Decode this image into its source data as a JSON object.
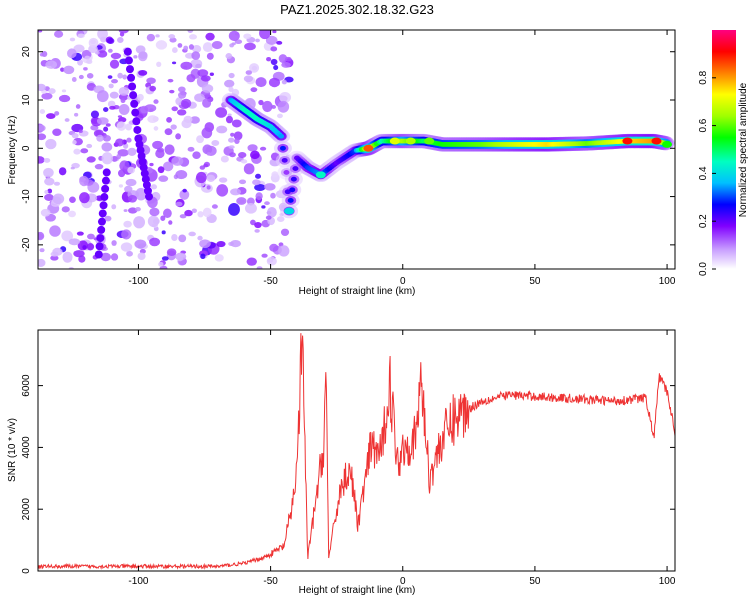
{
  "title": "PAZ1.2025.302.18.32.G23",
  "chart_data": [
    {
      "type": "heatmap",
      "name": "spectrogram",
      "xlabel": "Height of straight line (km)",
      "ylabel": "Frequency (Hz)",
      "xlim": [
        -138,
        103
      ],
      "ylim": [
        -25,
        24.5
      ],
      "xticks": [
        -100,
        -50,
        0,
        50,
        100
      ],
      "yticks": [
        -20,
        -10,
        0,
        10,
        20
      ],
      "colorbar": {
        "label": "Normalized spectral amplitude",
        "range": [
          0,
          1
        ],
        "ticks": [
          0.0,
          0.2,
          0.4,
          0.6,
          0.8
        ],
        "colormap": [
          "#ffffff",
          "#c9a0ff",
          "#8000ff",
          "#0000ff",
          "#00c0ff",
          "#00ffc0",
          "#00ff00",
          "#a0ff00",
          "#ffff00",
          "#ff8000",
          "#ff0000",
          "#ff0080"
        ]
      },
      "ridge": [
        {
          "x": -65,
          "y": 10,
          "a": 0.35
        },
        {
          "x": -60,
          "y": 8,
          "a": 0.45
        },
        {
          "x": -55,
          "y": 6,
          "a": 0.45
        },
        {
          "x": -50,
          "y": 4.5,
          "a": 0.4
        },
        {
          "x": -46,
          "y": 2.5,
          "a": 0.35
        },
        {
          "x": -44,
          "y": -5,
          "a": 0.15
        },
        {
          "x": -43,
          "y": -13,
          "a": 0.3
        },
        {
          "x": -40,
          "y": -2,
          "a": 0.2
        },
        {
          "x": -36,
          "y": -4,
          "a": 0.3
        },
        {
          "x": -31,
          "y": -5.5,
          "a": 0.35
        },
        {
          "x": -25,
          "y": -3,
          "a": 0.2
        },
        {
          "x": -18,
          "y": -0.5,
          "a": 0.3
        },
        {
          "x": -13,
          "y": 0,
          "a": 0.75
        },
        {
          "x": -8,
          "y": 1.5,
          "a": 0.45
        },
        {
          "x": 0,
          "y": 1.5,
          "a": 0.65
        },
        {
          "x": 8,
          "y": 1.5,
          "a": 0.5
        },
        {
          "x": 15,
          "y": 0.8,
          "a": 0.55
        },
        {
          "x": 30,
          "y": 0.8,
          "a": 0.6
        },
        {
          "x": 45,
          "y": 0.8,
          "a": 0.7
        },
        {
          "x": 55,
          "y": 0.8,
          "a": 0.75
        },
        {
          "x": 70,
          "y": 1,
          "a": 0.6
        },
        {
          "x": 85,
          "y": 1.5,
          "a": 0.75
        },
        {
          "x": 95,
          "y": 1.5,
          "a": 0.8
        },
        {
          "x": 100,
          "y": 1,
          "a": 0.6
        }
      ]
    },
    {
      "type": "line",
      "name": "snr",
      "xlabel": "Height of straight line (km)",
      "ylabel": "SNR (10 * v/v)",
      "xlim": [
        -138,
        103
      ],
      "ylim": [
        0,
        7800
      ],
      "xticks": [
        -100,
        -50,
        0,
        50,
        100
      ],
      "yticks": [
        0,
        2000,
        4000,
        6000
      ],
      "color": "#ee3333",
      "series": [
        {
          "x": -138,
          "y": 150
        },
        {
          "x": -100,
          "y": 150
        },
        {
          "x": -70,
          "y": 150
        },
        {
          "x": -60,
          "y": 250
        },
        {
          "x": -52,
          "y": 450
        },
        {
          "x": -45,
          "y": 800
        },
        {
          "x": -42,
          "y": 2000
        },
        {
          "x": -40,
          "y": 3400
        },
        {
          "x": -38,
          "y": 7700
        },
        {
          "x": -36,
          "y": 400
        },
        {
          "x": -33,
          "y": 2200
        },
        {
          "x": -30,
          "y": 4000
        },
        {
          "x": -29,
          "y": 6400
        },
        {
          "x": -28,
          "y": 400
        },
        {
          "x": -24,
          "y": 2500
        },
        {
          "x": -20,
          "y": 3400
        },
        {
          "x": -17,
          "y": 1500
        },
        {
          "x": -12,
          "y": 4000
        },
        {
          "x": -8,
          "y": 3800
        },
        {
          "x": -5,
          "y": 6200
        },
        {
          "x": -2,
          "y": 3500
        },
        {
          "x": 0,
          "y": 4000
        },
        {
          "x": 5,
          "y": 4300
        },
        {
          "x": 7,
          "y": 6300
        },
        {
          "x": 10,
          "y": 3000
        },
        {
          "x": 15,
          "y": 4300
        },
        {
          "x": 20,
          "y": 5000
        },
        {
          "x": 30,
          "y": 5500
        },
        {
          "x": 40,
          "y": 5700
        },
        {
          "x": 60,
          "y": 5600
        },
        {
          "x": 80,
          "y": 5500
        },
        {
          "x": 92,
          "y": 5600
        },
        {
          "x": 95,
          "y": 4300
        },
        {
          "x": 97,
          "y": 6300
        },
        {
          "x": 100,
          "y": 5800
        },
        {
          "x": 103,
          "y": 4500
        }
      ]
    }
  ]
}
